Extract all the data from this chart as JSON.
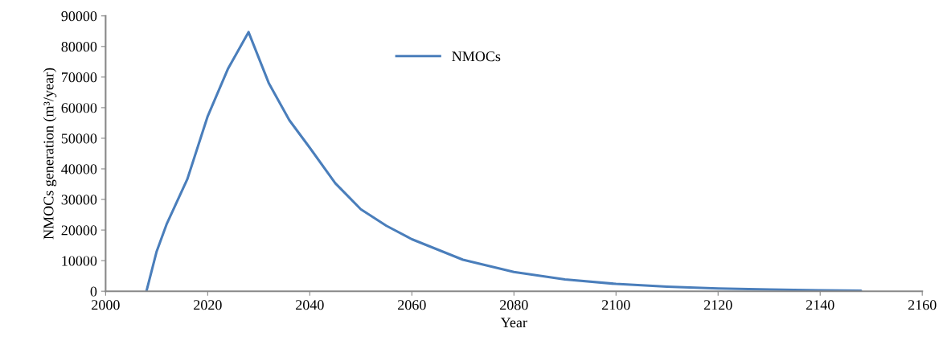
{
  "chart_data": {
    "type": "line",
    "xlabel": "Year",
    "ylabel": "NMOCs generation (m³/year)",
    "xlim": [
      2000,
      2160
    ],
    "xticks": [
      2000,
      2020,
      2040,
      2060,
      2080,
      2100,
      2120,
      2140,
      2160
    ],
    "ylim": [
      0,
      90000
    ],
    "yticks": [
      0,
      10000,
      20000,
      30000,
      40000,
      50000,
      60000,
      70000,
      80000,
      90000
    ],
    "grid": false,
    "legend": "top",
    "marker": "none",
    "line_style": "solid",
    "series": [
      {
        "name": "NMOCs",
        "color": "#4a7ebb",
        "x": [
          2008,
          2010,
          2012,
          2016,
          2020,
          2024,
          2028,
          2032,
          2036,
          2040,
          2045,
          2050,
          2055,
          2060,
          2070,
          2080,
          2090,
          2100,
          2110,
          2120,
          2130,
          2140,
          2148
        ],
        "values": [
          0,
          13000,
          22100,
          36600,
          57200,
          72800,
          84700,
          67900,
          55900,
          46900,
          35300,
          26800,
          21400,
          17000,
          10300,
          6270,
          3860,
          2400,
          1500,
          900,
          550,
          300,
          200
        ]
      }
    ]
  }
}
